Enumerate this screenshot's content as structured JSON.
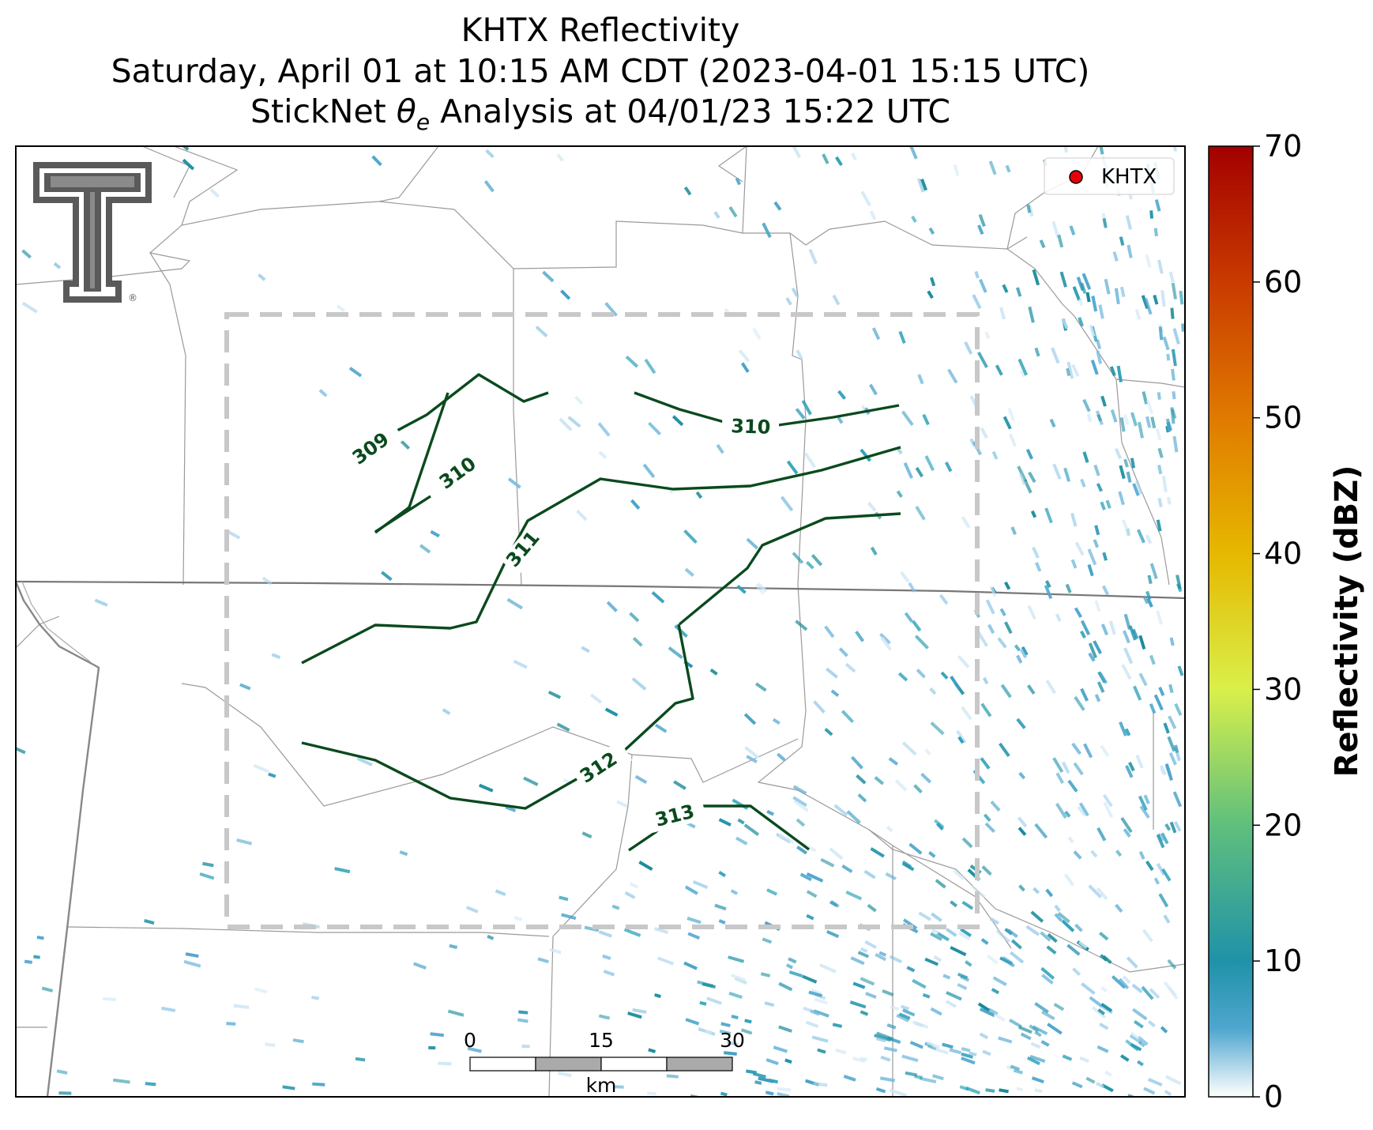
{
  "title": {
    "line1": "KHTX Reflectivity",
    "line2": "Saturday, April 01 at 10:15 AM CDT (2023-04-01 15:15 UTC)",
    "line3_prefix": "StickNet ",
    "line3_theta": "θ",
    "line3_sub": "e",
    "line3_suffix": " Analysis at 04/01/23 15:22 UTC"
  },
  "legend": {
    "label": "KHTX",
    "marker_color": "#e8000b"
  },
  "logo": {
    "name": "texas-tech-logo",
    "text": "T",
    "mark": "®"
  },
  "colorbar": {
    "label": "Reflectivity (dBZ)",
    "ticks": [
      "0",
      "10",
      "20",
      "30",
      "40",
      "50",
      "60",
      "70"
    ],
    "range": [
      0,
      70
    ],
    "stops": [
      {
        "v": 0,
        "color": "#ffffff"
      },
      {
        "v": 5,
        "color": "#4fa6cf"
      },
      {
        "v": 10,
        "color": "#1f92a8"
      },
      {
        "v": 20,
        "color": "#5fbf7d"
      },
      {
        "v": 30,
        "color": "#d9f04a"
      },
      {
        "v": 40,
        "color": "#e6b800"
      },
      {
        "v": 50,
        "color": "#e07a00"
      },
      {
        "v": 60,
        "color": "#c93a00"
      },
      {
        "v": 70,
        "color": "#a30000"
      }
    ]
  },
  "contours": {
    "color": "#0a4a1e",
    "labels": [
      "309",
      "310",
      "310",
      "311",
      "312",
      "313"
    ]
  },
  "scalebar": {
    "ticks": [
      "0",
      "15",
      "30"
    ],
    "unit": "km"
  },
  "colors": {
    "analysis_box": "#c8c8c8",
    "county_lines": "#9a9a9a",
    "state_line": "#777777"
  }
}
